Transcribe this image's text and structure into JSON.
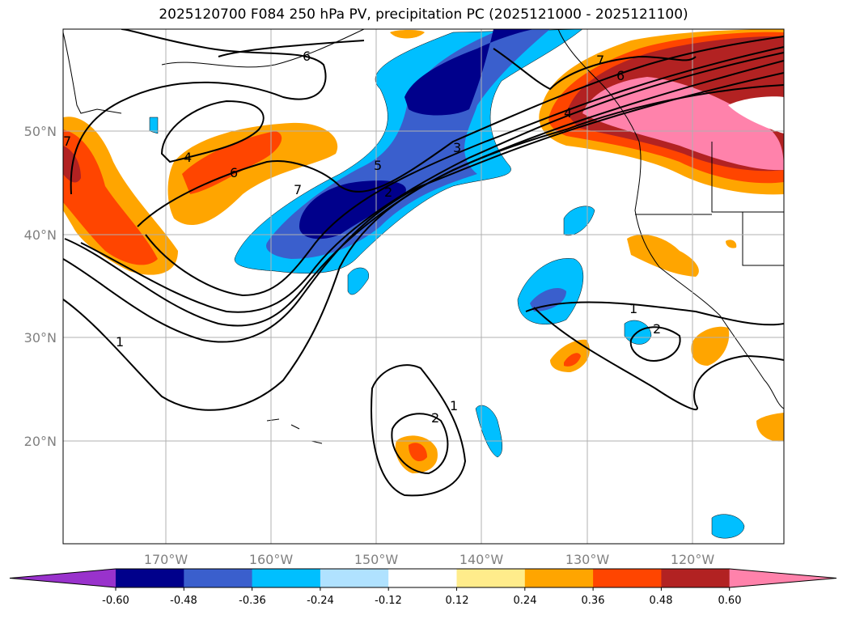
{
  "title": "2025120700 F084 250 hPa PV, precipitation PC (2025121000 - 2025121100)",
  "map": {
    "lat_ticks": [
      "50°N",
      "40°N",
      "30°N",
      "20°N"
    ],
    "lon_ticks": [
      "170°W",
      "160°W",
      "150°W",
      "140°W",
      "130°W",
      "120°W"
    ],
    "extent": {
      "lon_min": -180,
      "lon_max": -111.3,
      "lat_min": 10.2,
      "lat_max": 59.9
    },
    "contour_labels": [
      "1",
      "1",
      "1",
      "2",
      "2",
      "2",
      "3",
      "4",
      "4",
      "5",
      "6",
      "6",
      "6",
      "7",
      "7",
      "7"
    ]
  },
  "colorbar": {
    "levels": [
      "-0.60",
      "-0.48",
      "-0.36",
      "-0.24",
      "-0.12",
      "0.12",
      "0.24",
      "0.36",
      "0.48",
      "0.60"
    ],
    "colors": [
      "#9932cc",
      "#00008b",
      "#3a5fcd",
      "#00bfff",
      "#b0e2ff",
      "#ffffff",
      "#ffec8b",
      "#ffa500",
      "#ff4500",
      "#b22222",
      "#ff82ab"
    ]
  }
}
